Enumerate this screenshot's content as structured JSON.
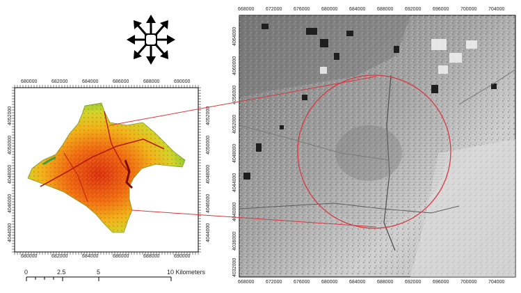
{
  "left_map": {
    "top_ticks": [
      "680000",
      "682000",
      "684000",
      "686000",
      "688000",
      "690000"
    ],
    "bottom_ticks": [
      "680000",
      "682000",
      "684000",
      "686000",
      "688000",
      "690000"
    ],
    "left_ticks": [
      "4052000",
      "4050000",
      "4048000",
      "4046000",
      "4044000"
    ],
    "right_ticks": [
      "4052000",
      "4050000",
      "4048000",
      "4046000",
      "4044000"
    ]
  },
  "scale_bar": {
    "labels": [
      "0",
      "2.5",
      "5",
      "10 Kilometers"
    ]
  },
  "right_map": {
    "top_ticks": [
      "668000",
      "672000",
      "676000",
      "680000",
      "684000",
      "688000",
      "692000",
      "696000",
      "700000",
      "704000"
    ],
    "bottom_ticks": [
      "668000",
      "672000",
      "676000",
      "680000",
      "684000",
      "688000",
      "692000",
      "696000",
      "700000",
      "704000"
    ],
    "left_ticks": [
      "4064000",
      "4060000",
      "4056000",
      "4052000",
      "4048000",
      "4044000",
      "4040000",
      "4036000",
      "4032000"
    ]
  },
  "icons": {
    "pan": "move-arrows-icon"
  }
}
